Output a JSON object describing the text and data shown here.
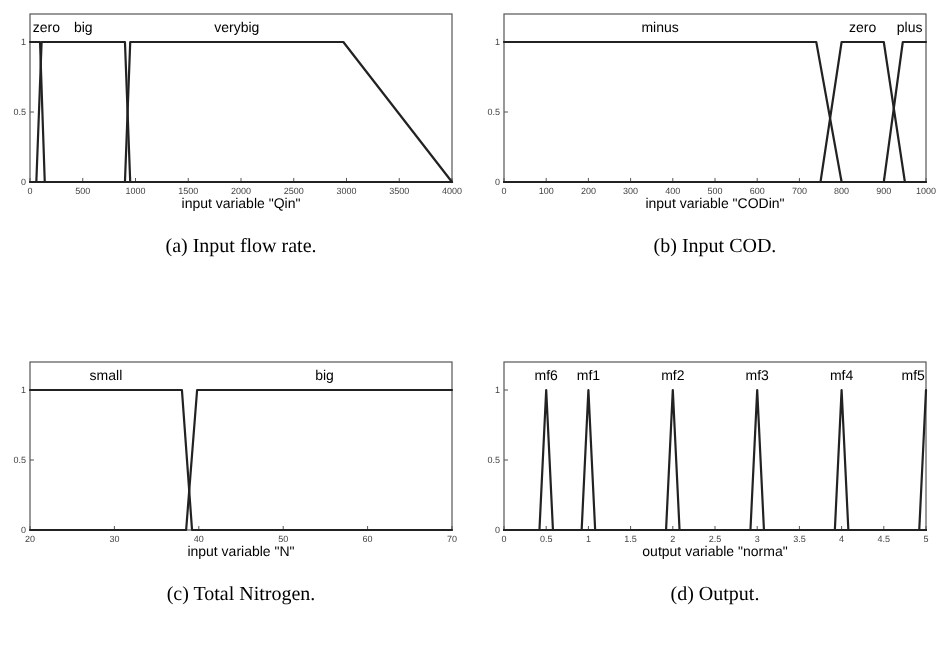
{
  "chart_data": [
    {
      "type": "line",
      "title": "(a) Input flow rate.",
      "xlabel": "input variable \"Qin\"",
      "xlim": [
        0,
        4000
      ],
      "xticks": [
        0,
        500,
        1000,
        1500,
        2000,
        2500,
        3000,
        3500,
        4000
      ],
      "ylim": [
        0,
        1.2
      ],
      "yticks": [
        0,
        0.5,
        1
      ],
      "grid": false,
      "series": [
        {
          "name": "zero",
          "color": "#222222",
          "x": [
            0,
            95,
            140,
            4000
          ],
          "values": [
            1,
            1,
            0,
            0
          ]
        },
        {
          "name": "big",
          "color": "#222222",
          "x": [
            0,
            60,
            110,
            900,
            950,
            4000
          ],
          "values": [
            0,
            0,
            1,
            1,
            0,
            0
          ]
        },
        {
          "name": "verybig",
          "color": "#222222",
          "x": [
            0,
            900,
            950,
            2970,
            4000
          ],
          "values": [
            0,
            0,
            1,
            1,
            0
          ]
        }
      ]
    },
    {
      "type": "line",
      "title": "(b) Input COD.",
      "xlabel": "input variable \"CODin\"",
      "xlim": [
        0,
        1000
      ],
      "xticks": [
        0,
        100,
        200,
        300,
        400,
        500,
        600,
        700,
        800,
        900,
        1000
      ],
      "ylim": [
        0,
        1.2
      ],
      "yticks": [
        0,
        0.5,
        1
      ],
      "grid": false,
      "series": [
        {
          "name": "minus",
          "color": "#222222",
          "x": [
            0,
            740,
            800,
            1000
          ],
          "values": [
            1,
            1,
            0,
            0
          ]
        },
        {
          "name": "zero",
          "color": "#222222",
          "x": [
            0,
            750,
            800,
            900,
            950,
            1000
          ],
          "values": [
            0,
            0,
            1,
            1,
            0,
            0
          ]
        },
        {
          "name": "plus",
          "color": "#222222",
          "x": [
            0,
            900,
            945,
            1000
          ],
          "values": [
            0,
            0,
            1,
            1
          ]
        }
      ]
    },
    {
      "type": "line",
      "title": "(c) Total Nitrogen.",
      "xlabel": "input variable \"N\"",
      "xlim": [
        20,
        70
      ],
      "xticks": [
        20,
        30,
        40,
        50,
        60,
        70
      ],
      "ylim": [
        0,
        1.2
      ],
      "yticks": [
        0,
        0.5,
        1
      ],
      "grid": false,
      "series": [
        {
          "name": "small",
          "color": "#222222",
          "x": [
            20,
            38,
            39.2,
            70
          ],
          "values": [
            1,
            1,
            0,
            0
          ]
        },
        {
          "name": "big",
          "color": "#222222",
          "x": [
            20,
            38.5,
            39.8,
            70
          ],
          "values": [
            0,
            0,
            1,
            1
          ]
        }
      ]
    },
    {
      "type": "line",
      "title": "(d) Output.",
      "xlabel": "output variable \"norma\"",
      "xlim": [
        0,
        5
      ],
      "xticks": [
        0,
        0.5,
        1,
        1.5,
        2,
        2.5,
        3,
        3.5,
        4,
        4.5,
        5
      ],
      "ylim": [
        0,
        1.2
      ],
      "yticks": [
        0,
        0.5,
        1
      ],
      "grid": false,
      "series": [
        {
          "name": "mf6",
          "color": "#222222",
          "x": [
            0,
            0.42,
            0.5,
            0.58,
            5
          ],
          "values": [
            0,
            0,
            1,
            0,
            0
          ]
        },
        {
          "name": "mf1",
          "color": "#222222",
          "x": [
            0,
            0.92,
            1,
            1.08,
            5
          ],
          "values": [
            0,
            0,
            1,
            0,
            0
          ]
        },
        {
          "name": "mf2",
          "color": "#222222",
          "x": [
            0,
            1.92,
            2,
            2.08,
            5
          ],
          "values": [
            0,
            0,
            1,
            0,
            0
          ]
        },
        {
          "name": "mf3",
          "color": "#222222",
          "x": [
            0,
            2.92,
            3,
            3.08,
            5
          ],
          "values": [
            0,
            0,
            1,
            0,
            0
          ]
        },
        {
          "name": "mf4",
          "color": "#222222",
          "x": [
            0,
            3.92,
            4,
            4.08,
            5
          ],
          "values": [
            0,
            0,
            1,
            0,
            0
          ]
        },
        {
          "name": "mf5",
          "color": "#222222",
          "x": [
            0,
            4.92,
            5
          ],
          "values": [
            0,
            0,
            1
          ]
        }
      ]
    }
  ]
}
